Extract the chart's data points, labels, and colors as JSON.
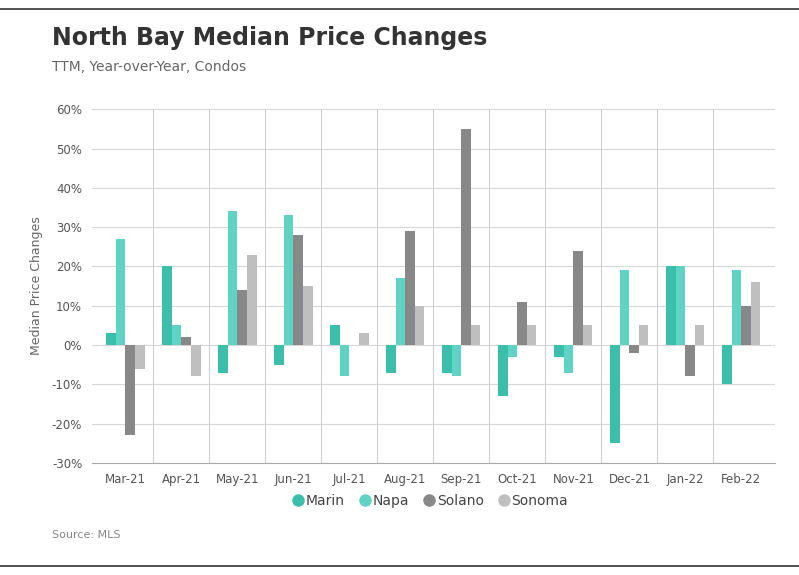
{
  "title": "North Bay Median Price Changes",
  "subtitle": "TTM, Year-over-Year, Condos",
  "source": "Source: MLS",
  "ylabel": "Median Price Changes",
  "months": [
    "Mar-21",
    "Apr-21",
    "May-21",
    "Jun-21",
    "Jul-21",
    "Aug-21",
    "Sep-21",
    "Oct-21",
    "Nov-21",
    "Dec-21",
    "Jan-22",
    "Feb-22"
  ],
  "series": {
    "Marin": [
      3,
      20,
      -7,
      -5,
      5,
      -7,
      -7,
      -13,
      -3,
      -25,
      20,
      -10
    ],
    "Napa": [
      27,
      5,
      34,
      33,
      -8,
      17,
      -8,
      -3,
      -7,
      19,
      20,
      19
    ],
    "Solano": [
      -23,
      2,
      14,
      28,
      0,
      29,
      55,
      11,
      24,
      -2,
      -8,
      10
    ],
    "Sonoma": [
      -6,
      -8,
      23,
      15,
      3,
      10,
      5,
      5,
      5,
      5,
      5,
      16
    ]
  },
  "colors": {
    "Marin": "#3bbfaa",
    "Napa": "#5fd3c4",
    "Solano": "#888888",
    "Sonoma": "#c0bfbf"
  },
  "ylim": [
    -30,
    60
  ],
  "yticks": [
    -30,
    -20,
    -10,
    0,
    10,
    20,
    30,
    40,
    50,
    60
  ],
  "background_color": "#ffffff",
  "grid_color": "#d8d8d8",
  "title_fontsize": 17,
  "subtitle_fontsize": 10,
  "axis_label_fontsize": 9,
  "tick_fontsize": 8.5,
  "legend_fontsize": 10
}
